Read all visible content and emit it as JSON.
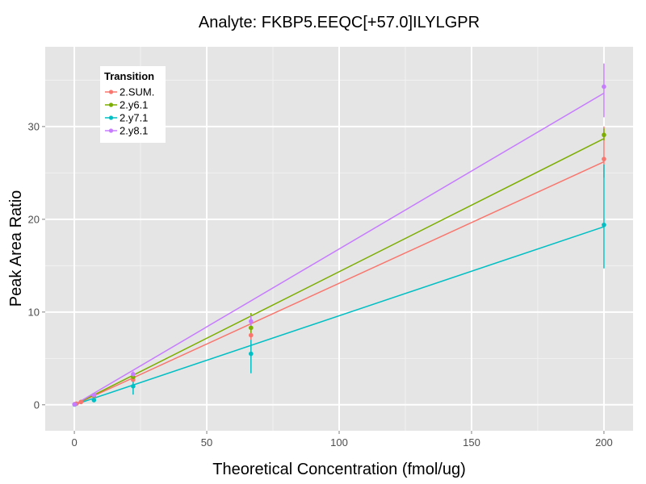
{
  "chart_data": {
    "type": "scatter",
    "title": "Analyte: FKBP5.EEQC[+57.0]ILYLGPR",
    "xlabel": "Theoretical Concentration (fmol/ug)",
    "ylabel": "Peak Area Ratio",
    "xlim": [
      -11,
      211
    ],
    "ylim": [
      -2.8,
      38.6
    ],
    "x_ticks": [
      0,
      50,
      100,
      150,
      200
    ],
    "y_ticks": [
      0,
      10,
      20,
      30
    ],
    "grid": true,
    "legend": {
      "title": "Transition",
      "placement": "top-left"
    },
    "series": [
      {
        "name": "2.SUM.",
        "color": "#F8766D",
        "fit": {
          "x": [
            0,
            200
          ],
          "y": [
            0,
            26.2
          ]
        },
        "points": [
          {
            "x": 0.1,
            "y": 0.05
          },
          {
            "x": 0.3,
            "y": 0.08
          },
          {
            "x": 0.8,
            "y": 0.12
          },
          {
            "x": 2.5,
            "y": 0.3
          },
          {
            "x": 7.4,
            "y": 0.95
          },
          {
            "x": 22.2,
            "y": 2.7,
            "err": [
              2.5,
              2.9
            ]
          },
          {
            "x": 66.7,
            "y": 7.5,
            "err": [
              7.0,
              8.1
            ]
          },
          {
            "x": 200,
            "y": 26.5,
            "err": [
              24.5,
              30.0
            ]
          }
        ]
      },
      {
        "name": "2.y6.1",
        "color": "#7CAE00",
        "fit": {
          "x": [
            0,
            200
          ],
          "y": [
            0,
            28.7
          ]
        },
        "points": [
          {
            "x": 0.1,
            "y": 0.05
          },
          {
            "x": 7.4,
            "y": 1.0
          },
          {
            "x": 22.2,
            "y": 3.0,
            "err": [
              2.7,
              3.3
            ]
          },
          {
            "x": 66.7,
            "y": 8.3,
            "err": [
              7.6,
              9.9
            ]
          },
          {
            "x": 200,
            "y": 29.1,
            "err": [
              28.5,
              29.8
            ]
          }
        ]
      },
      {
        "name": "2.y7.1",
        "color": "#00BFC4",
        "fit": {
          "x": [
            0,
            200
          ],
          "y": [
            0,
            19.2
          ]
        },
        "points": [
          {
            "x": 0.1,
            "y": 0.03
          },
          {
            "x": 7.4,
            "y": 0.5,
            "err": [
              0.3,
              0.8
            ]
          },
          {
            "x": 22.2,
            "y": 2.0,
            "err": [
              1.1,
              2.9
            ]
          },
          {
            "x": 66.7,
            "y": 5.5,
            "err": [
              3.4,
              7.0
            ]
          },
          {
            "x": 200,
            "y": 19.4,
            "err": [
              14.7,
              25.9
            ]
          }
        ]
      },
      {
        "name": "2.y8.1",
        "color": "#C77CFF",
        "fit": {
          "x": [
            0,
            200
          ],
          "y": [
            0,
            33.6
          ]
        },
        "points": [
          {
            "x": 0.1,
            "y": 0.05
          },
          {
            "x": 7.4,
            "y": 1.05
          },
          {
            "x": 22.2,
            "y": 3.3,
            "err": [
              3.1,
              3.6
            ]
          },
          {
            "x": 66.7,
            "y": 9.0,
            "err": [
              8.5,
              9.6
            ]
          },
          {
            "x": 200,
            "y": 34.3,
            "err": [
              31.0,
              36.8
            ]
          }
        ]
      }
    ]
  }
}
